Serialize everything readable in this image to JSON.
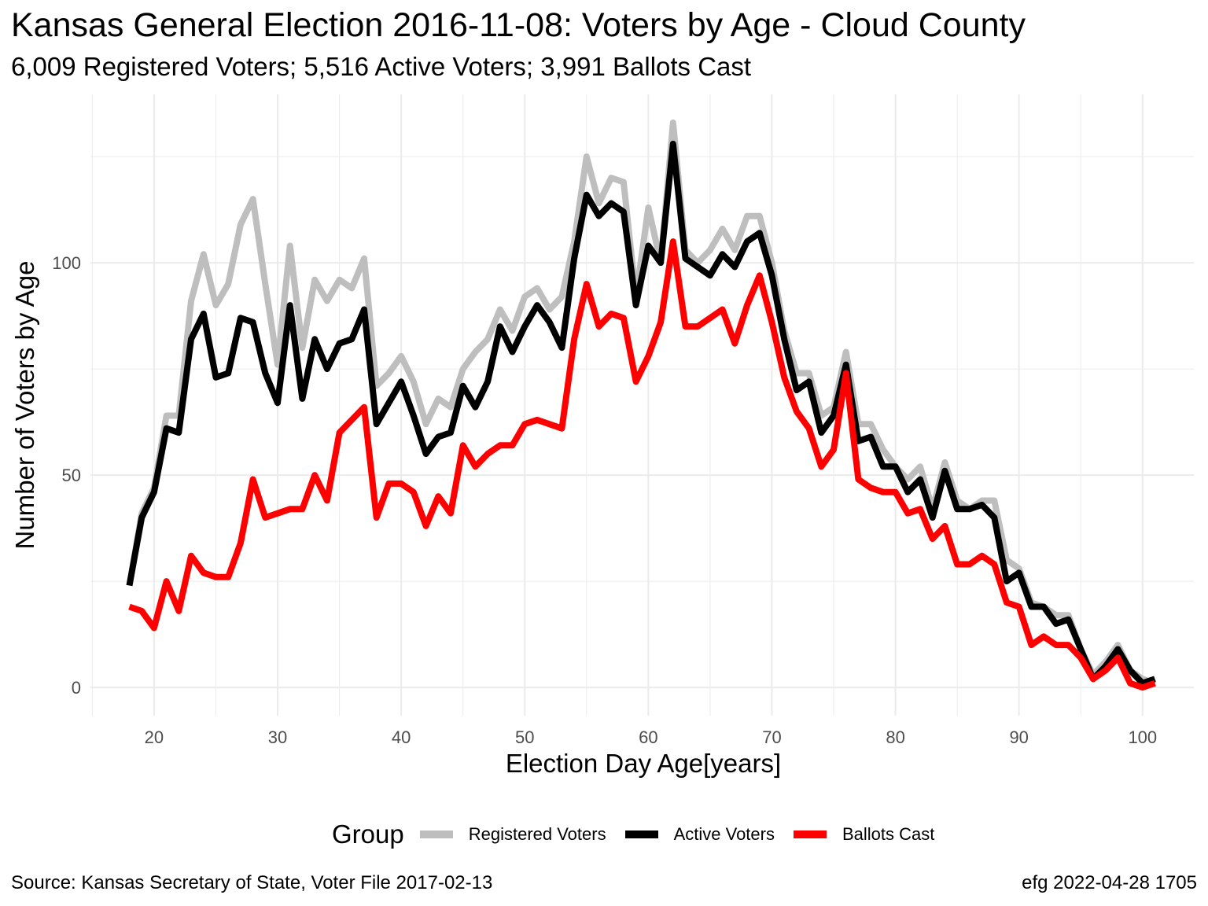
{
  "chart_data": {
    "type": "line",
    "title": "Kansas General Election 2016-11-08:  Voters by Age - Cloud County",
    "subtitle": "6,009 Registered Voters; 5,516 Active Voters; 3,991 Ballots Cast",
    "xlabel": "Election Day Age[years]",
    "ylabel": "Number of Voters by Age",
    "xlim": [
      18,
      101
    ],
    "ylim": [
      0,
      133
    ],
    "x_ticks": [
      20,
      30,
      40,
      50,
      60,
      70,
      80,
      90,
      100
    ],
    "y_ticks": [
      0,
      50,
      100
    ],
    "grid": true,
    "legend": {
      "title": "Group",
      "position": "bottom"
    },
    "x": [
      18,
      19,
      20,
      21,
      22,
      23,
      24,
      25,
      26,
      27,
      28,
      29,
      30,
      31,
      32,
      33,
      34,
      35,
      36,
      37,
      38,
      39,
      40,
      41,
      42,
      43,
      44,
      45,
      46,
      47,
      48,
      49,
      50,
      51,
      52,
      53,
      54,
      55,
      56,
      57,
      58,
      59,
      60,
      61,
      62,
      63,
      64,
      65,
      66,
      67,
      68,
      69,
      70,
      71,
      72,
      73,
      74,
      75,
      76,
      77,
      78,
      79,
      80,
      81,
      82,
      83,
      84,
      85,
      86,
      87,
      88,
      89,
      90,
      91,
      92,
      93,
      94,
      95,
      96,
      97,
      98,
      99,
      100,
      101
    ],
    "series": [
      {
        "name": "Registered Voters",
        "color": "#bebebe",
        "values": [
          24,
          41,
          47,
          64,
          64,
          91,
          102,
          90,
          95,
          109,
          115,
          95,
          76,
          104,
          80,
          96,
          91,
          96,
          94,
          101,
          71,
          74,
          78,
          72,
          62,
          68,
          66,
          75,
          79,
          82,
          89,
          84,
          92,
          94,
          89,
          92,
          105,
          125,
          114,
          120,
          119,
          92,
          113,
          100,
          133,
          103,
          100,
          103,
          108,
          103,
          111,
          111,
          100,
          84,
          74,
          74,
          64,
          66,
          79,
          62,
          62,
          56,
          52,
          49,
          52,
          42,
          53,
          44,
          42,
          44,
          44,
          30,
          28,
          20,
          19,
          17,
          17,
          9,
          3,
          6,
          10,
          4,
          2,
          1
        ]
      },
      {
        "name": "Active Voters",
        "color": "#000000",
        "values": [
          24,
          40,
          46,
          61,
          60,
          82,
          88,
          73,
          74,
          87,
          86,
          74,
          67,
          90,
          68,
          82,
          75,
          81,
          82,
          89,
          62,
          67,
          72,
          64,
          55,
          59,
          60,
          71,
          66,
          72,
          85,
          79,
          85,
          90,
          86,
          80,
          101,
          116,
          111,
          114,
          112,
          90,
          104,
          100,
          128,
          101,
          99,
          97,
          102,
          99,
          105,
          107,
          97,
          82,
          70,
          72,
          60,
          64,
          76,
          58,
          59,
          52,
          52,
          46,
          49,
          40,
          51,
          42,
          42,
          43,
          40,
          25,
          27,
          19,
          19,
          15,
          16,
          9,
          2,
          5,
          9,
          4,
          1,
          2
        ]
      },
      {
        "name": "Ballots Cast",
        "color": "#ff0000",
        "values": [
          19,
          18,
          14,
          25,
          18,
          31,
          27,
          26,
          26,
          34,
          49,
          40,
          41,
          42,
          42,
          50,
          44,
          60,
          63,
          66,
          40,
          48,
          48,
          46,
          38,
          45,
          41,
          57,
          52,
          55,
          57,
          57,
          62,
          63,
          62,
          61,
          82,
          95,
          85,
          88,
          87,
          72,
          78,
          86,
          105,
          85,
          85,
          87,
          89,
          81,
          90,
          97,
          86,
          73,
          65,
          61,
          52,
          56,
          74,
          49,
          47,
          46,
          46,
          41,
          42,
          35,
          38,
          29,
          29,
          31,
          29,
          20,
          19,
          10,
          12,
          10,
          10,
          7,
          2,
          4,
          7,
          1,
          0,
          1
        ]
      }
    ]
  },
  "footer": {
    "source": "Source:  Kansas Secretary of State, Voter File  2017-02-13",
    "stamp": "efg 2022-04-28 1705"
  }
}
